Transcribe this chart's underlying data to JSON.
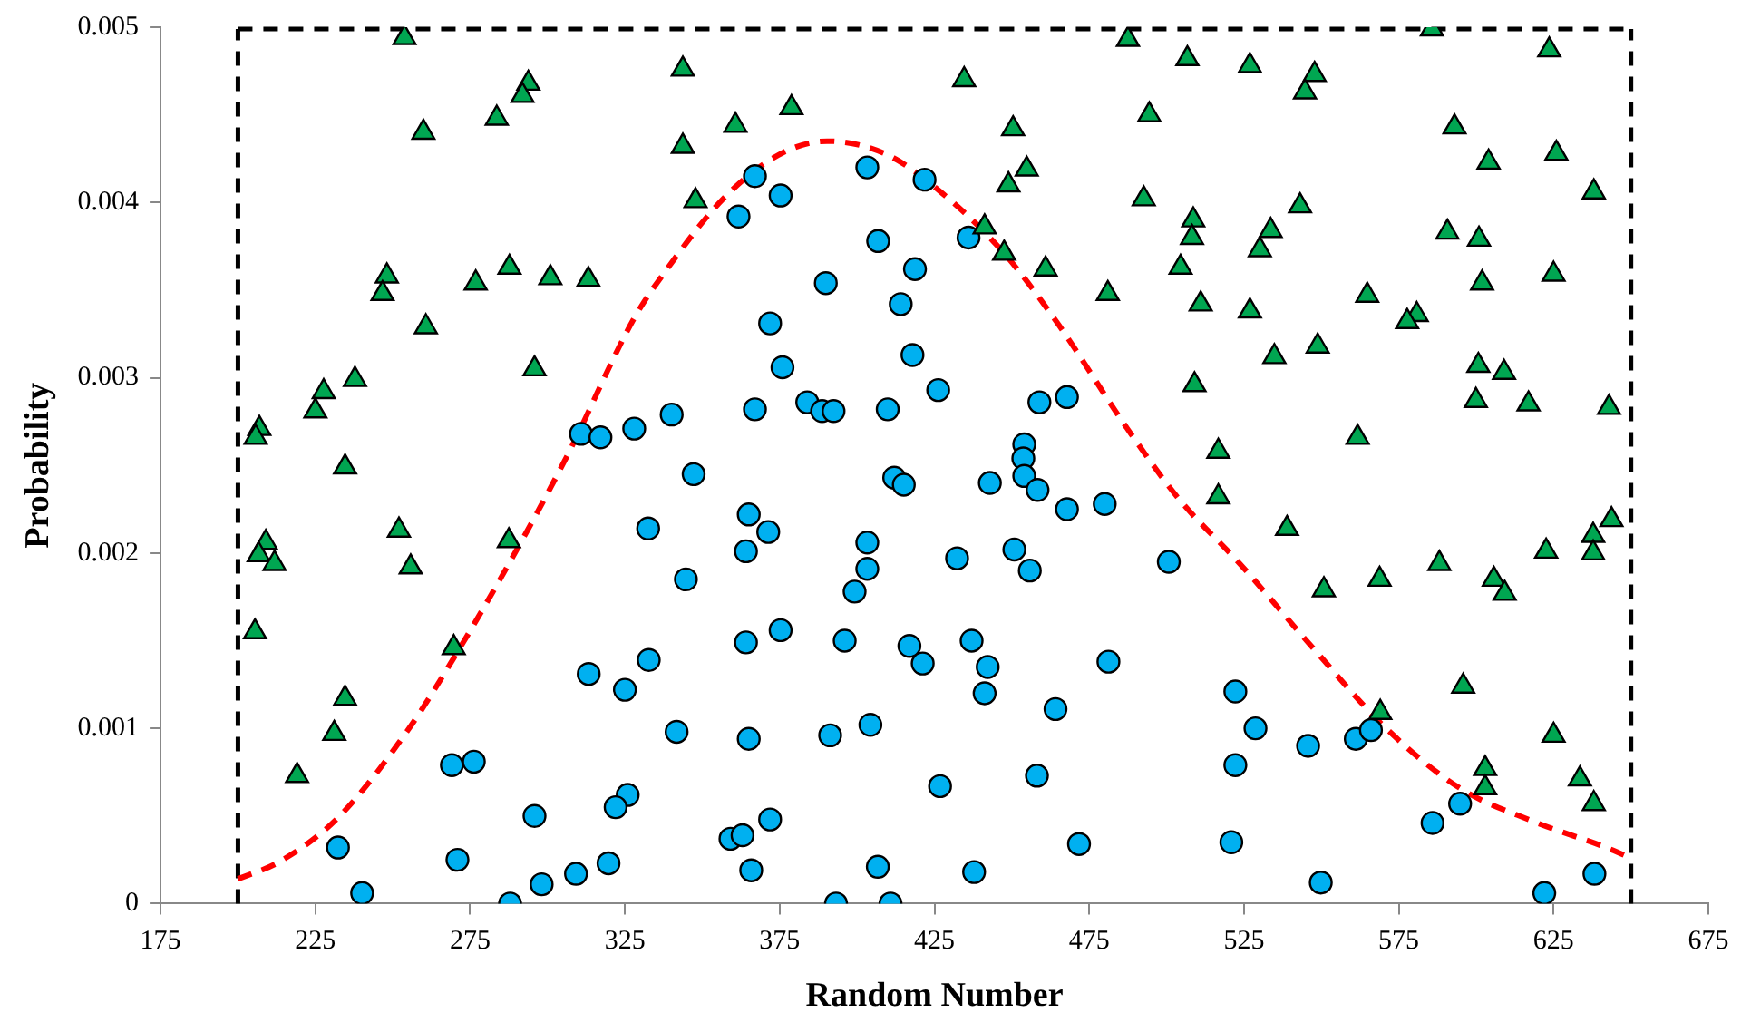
{
  "chart_data": {
    "type": "scatter",
    "xlabel": "Random Number",
    "ylabel": "Probability",
    "xlim": [
      175,
      675
    ],
    "xticks": [
      175,
      225,
      275,
      325,
      375,
      425,
      475,
      525,
      575,
      625,
      675
    ],
    "ylim": [
      0,
      0.005
    ],
    "yticks": [
      0,
      0.001,
      0.002,
      0.003,
      0.004,
      0.005
    ],
    "grid": false,
    "legend": false,
    "ref_lines": [
      {
        "axis": "x",
        "value": 200,
        "color": "#000000",
        "line_style": "dashed"
      },
      {
        "axis": "x",
        "value": 650,
        "color": "#000000",
        "line_style": "dashed"
      },
      {
        "axis": "y",
        "value": 0.005,
        "color": "#000000",
        "line_style": "dashed"
      }
    ],
    "series": [
      {
        "type": "scatter",
        "marker": "triangle",
        "color": "#00a651",
        "x": [
          205.5,
          209.0,
          206.7,
          211.8,
          234.6,
          252.0,
          255.8,
          287.5,
          269.7,
          234.6,
          231.1,
          219.1,
          253.8,
          293.8,
          291.9,
          283.6,
          259.9,
          248.1,
          246.7,
          276.8,
          287.7,
          300.9,
          313.2,
          260.7,
          295.8,
          237.8,
          227.7,
          225.0,
          206.9,
          205.7,
          343.7,
          343.7,
          360.7,
          378.8,
          347.8,
          434.6,
          450.4,
          454.8,
          448.9,
          441.2,
          447.5,
          460.9,
          481.0,
          487.5,
          506.7,
          494.4,
          492.6,
          504.5,
          508.6,
          508.2,
          509.0,
          526.9,
          547.8,
          544.7,
          585.7,
          623.6,
          593.0,
          604.0,
          625.9,
          638.0,
          533.6,
          530.1,
          543.1,
          590.7,
          600.9,
          601.9,
          625.0,
          511.0,
          526.9,
          564.8,
          580.8,
          577.7,
          534.8,
          548.8,
          600.7,
          609.0,
          599.9,
          616.9,
          642.9,
          516.7,
          561.7,
          516.7,
          538.9,
          550.8,
          568.8,
          588.1,
          605.7,
          609.2,
          622.6,
          637.8,
          643.7,
          637.8,
          595.8,
          569.0,
          625.0,
          602.9,
          602.9,
          633.5,
          638.0
        ],
        "values": [
          0.00155,
          0.00206,
          0.00199,
          0.00194,
          0.00249,
          0.00213,
          0.00192,
          0.00207,
          0.00146,
          0.00117,
          0.00097,
          0.00073,
          0.00494,
          0.00468,
          0.00461,
          0.00448,
          0.0044,
          0.00358,
          0.00348,
          0.00354,
          0.00363,
          0.00357,
          0.00356,
          0.00329,
          0.00305,
          0.00299,
          0.00292,
          0.00281,
          0.00271,
          0.00266,
          0.00476,
          0.00432,
          0.00444,
          0.00454,
          0.00401,
          0.0047,
          0.00442,
          0.00419,
          0.0041,
          0.00386,
          0.00371,
          0.00362,
          0.00348,
          0.00493,
          0.00482,
          0.0045,
          0.00402,
          0.00363,
          0.0039,
          0.0038,
          0.00296,
          0.00478,
          0.00473,
          0.00463,
          0.00499,
          0.00487,
          0.00443,
          0.00423,
          0.00428,
          0.00406,
          0.00384,
          0.00373,
          0.00398,
          0.00383,
          0.00379,
          0.00354,
          0.00359,
          0.00342,
          0.00338,
          0.00347,
          0.00336,
          0.00332,
          0.00312,
          0.00318,
          0.00307,
          0.00303,
          0.00287,
          0.00285,
          0.00283,
          0.00258,
          0.00266,
          0.00232,
          0.00214,
          0.00179,
          0.00185,
          0.00194,
          0.00185,
          0.00177,
          0.00201,
          0.0021,
          0.00219,
          0.002,
          0.00124,
          0.00109,
          0.00096,
          0.00077,
          0.00066,
          0.00071,
          0.00057
        ]
      },
      {
        "type": "scatter",
        "marker": "circle",
        "color": "#00b0f0",
        "x": [
          310.8,
          317.1,
          328.0,
          340.1,
          367.0,
          375.3,
          361.7,
          403.3,
          421.8,
          436.0,
          406.8,
          418.7,
          389.9,
          414.1,
          371.9,
          375.9,
          417.9,
          426.2,
          383.9,
          388.7,
          392.4,
          367.0,
          409.9,
          458.9,
          467.8,
          454.0,
          453.7,
          454.0,
          347.2,
          412.0,
          415.1,
          442.9,
          458.3,
          467.8,
          480.0,
          365.0,
          371.3,
          364.1,
          403.3,
          403.3,
          399.2,
          344.7,
          432.3,
          450.8,
          455.8,
          500.7,
          364.1,
          375.3,
          396.0,
          416.9,
          421.2,
          437.0,
          442.2,
          441.2,
          481.2,
          341.7,
          365.0,
          391.3,
          404.3,
          464.1,
          426.8,
          458.1,
          371.9,
          359.1,
          363.0,
          365.8,
          406.7,
          437.8,
          471.7,
          393.2,
          410.8,
          332.5,
          332.7,
          313.3,
          325.0,
          269.1,
          276.2,
          325.9,
          322.0,
          295.8,
          232.3,
          270.9,
          319.7,
          309.2,
          298.1,
          287.9,
          240.1,
          522.2,
          528.7,
          522.2,
          545.7,
          561.1,
          566.0,
          520.9,
          549.8,
          585.9,
          594.8,
          622.0,
          638.2
        ],
        "values": [
          0.00268,
          0.00266,
          0.00271,
          0.00279,
          0.00415,
          0.00404,
          0.00392,
          0.0042,
          0.00413,
          0.0038,
          0.00378,
          0.00362,
          0.00354,
          0.00342,
          0.00331,
          0.00306,
          0.00313,
          0.00293,
          0.00286,
          0.00281,
          0.00281,
          0.00282,
          0.00282,
          0.00286,
          0.00289,
          0.00262,
          0.00254,
          0.00244,
          0.00245,
          0.00243,
          0.00239,
          0.0024,
          0.00236,
          0.00225,
          0.00228,
          0.00222,
          0.00212,
          0.00201,
          0.00206,
          0.00191,
          0.00178,
          0.00185,
          0.00197,
          0.00202,
          0.0019,
          0.00195,
          0.00149,
          0.00156,
          0.0015,
          0.00147,
          0.00137,
          0.0015,
          0.00135,
          0.0012,
          0.00138,
          0.00098,
          0.00094,
          0.00096,
          0.00102,
          0.00111,
          0.00067,
          0.00073,
          0.00048,
          0.00037,
          0.00039,
          0.00019,
          0.00021,
          0.00018,
          0.00034,
          0,
          0,
          0.00214,
          0.00139,
          0.00131,
          0.00122,
          0.00079,
          0.00081,
          0.00062,
          0.00055,
          0.0005,
          0.00032,
          0.00025,
          0.00023,
          0.00017,
          0.00011,
          0,
          6e-05,
          0.00121,
          0.001,
          0.00079,
          0.0009,
          0.00094,
          0.00099,
          0.00035,
          0.00012,
          0.00046,
          0.00057,
          6e-05,
          0.00017
        ]
      },
      {
        "type": "line",
        "marker": "none",
        "line_style": "dashed",
        "color": "#ff0000",
        "x": [
          200,
          213.5,
          232.3,
          254.9,
          270.7,
          288.5,
          306.2,
          328,
          339,
          356.7,
          374.5,
          390.3,
          410,
          427.7,
          447.5,
          465.2,
          486.9,
          503.9,
          523.6,
          547.2,
          570.9,
          594.6,
          618.3,
          642,
          650
        ],
        "values": [
          0.00014,
          0.00024,
          0.00049,
          0.00099,
          0.00143,
          0.00197,
          0.00255,
          0.00334,
          0.00363,
          0.00402,
          0.00427,
          0.00435,
          0.00427,
          0.00405,
          0.00371,
          0.0033,
          0.00272,
          0.00231,
          0.00194,
          0.00146,
          0.001,
          0.00066,
          0.00047,
          0.00032,
          0.00026
        ]
      }
    ]
  }
}
